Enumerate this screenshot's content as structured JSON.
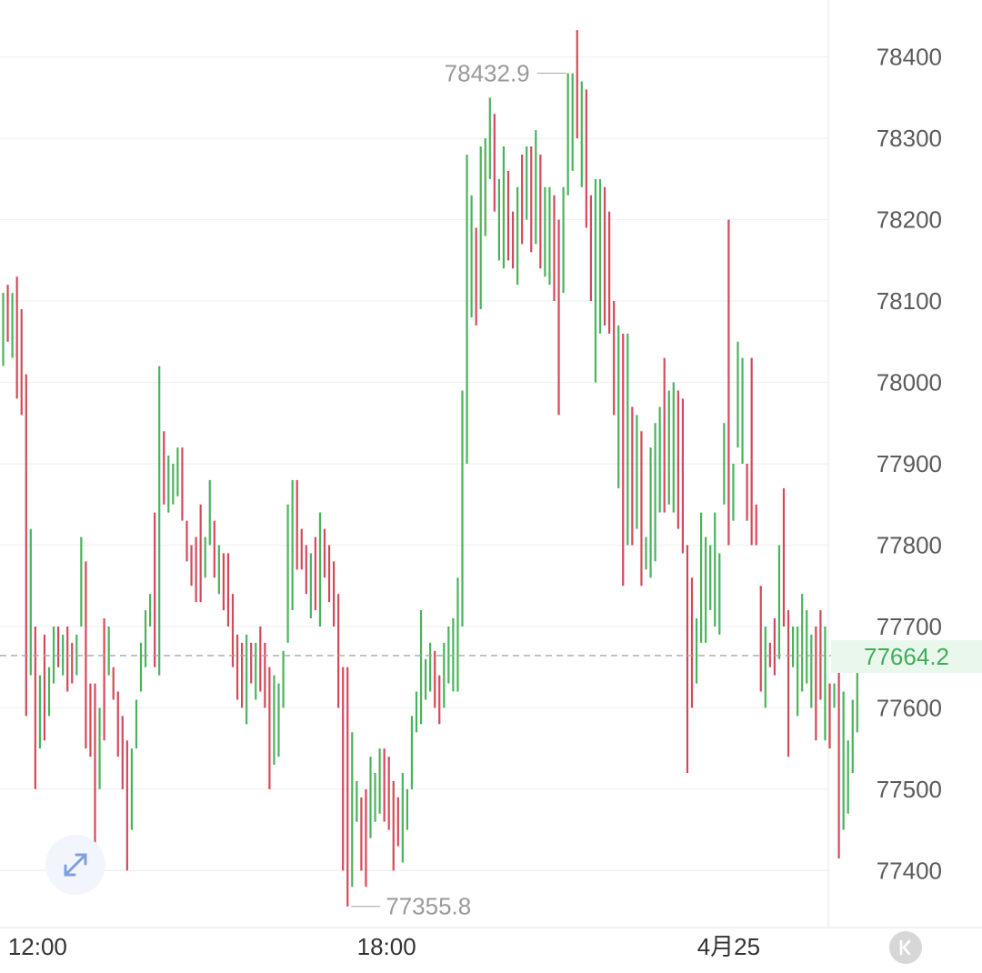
{
  "chart_data": {
    "type": "ohlc",
    "title": "",
    "xlabel": "",
    "ylabel": "",
    "ylim": [
      77330,
      78470
    ],
    "yticks": [
      78400,
      78300,
      78200,
      78100,
      78000,
      77900,
      77800,
      77700,
      77600,
      77500,
      77400
    ],
    "xticks": [
      {
        "label": "12:00",
        "index": 7.5
      },
      {
        "label": "18:00",
        "index": 83.5
      },
      {
        "label": "4月25",
        "index": 158
      }
    ],
    "grid": true,
    "current_price": 77664.2,
    "current_price_label": "77664.2",
    "max_label": "78432.9",
    "min_label": "77355.8",
    "max_index": 123,
    "min_index": 75,
    "colors": {
      "up": "#49b35c",
      "down": "#d4495a",
      "current": "#3fae5a",
      "current_bg": "#eaf7ed"
    },
    "candles": [
      [
        78110,
        78020,
        "up"
      ],
      [
        78120,
        78050,
        "down"
      ],
      [
        78110,
        78030,
        "up"
      ],
      [
        78130,
        77980,
        "down"
      ],
      [
        78090,
        77960,
        "down"
      ],
      [
        78010,
        77590,
        "down"
      ],
      [
        77820,
        77640,
        "up"
      ],
      [
        77700,
        77500,
        "down"
      ],
      [
        77640,
        77550,
        "up"
      ],
      [
        77690,
        77560,
        "down"
      ],
      [
        77650,
        77590,
        "up"
      ],
      [
        77700,
        77630,
        "up"
      ],
      [
        77700,
        77650,
        "down"
      ],
      [
        77690,
        77640,
        "up"
      ],
      [
        77700,
        77620,
        "down"
      ],
      [
        77680,
        77630,
        "down"
      ],
      [
        77690,
        77640,
        "up"
      ],
      [
        77810,
        77700,
        "up"
      ],
      [
        77780,
        77550,
        "down"
      ],
      [
        77630,
        77540,
        "down"
      ],
      [
        77630,
        77410,
        "down"
      ],
      [
        77600,
        77500,
        "up"
      ],
      [
        77710,
        77560,
        "down"
      ],
      [
        77700,
        77640,
        "up"
      ],
      [
        77650,
        77610,
        "down"
      ],
      [
        77620,
        77540,
        "down"
      ],
      [
        77590,
        77500,
        "down"
      ],
      [
        77560,
        77400,
        "down"
      ],
      [
        77550,
        77450,
        "up"
      ],
      [
        77610,
        77550,
        "up"
      ],
      [
        77680,
        77620,
        "up"
      ],
      [
        77720,
        77650,
        "up"
      ],
      [
        77740,
        77700,
        "up"
      ],
      [
        77840,
        77650,
        "down"
      ],
      [
        78020,
        77640,
        "up"
      ],
      [
        77940,
        77850,
        "down"
      ],
      [
        77910,
        77840,
        "up"
      ],
      [
        77900,
        77850,
        "up"
      ],
      [
        77920,
        77860,
        "up"
      ],
      [
        77920,
        77830,
        "down"
      ],
      [
        77830,
        77780,
        "down"
      ],
      [
        77800,
        77750,
        "down"
      ],
      [
        77810,
        77730,
        "down"
      ],
      [
        77850,
        77730,
        "down"
      ],
      [
        77810,
        77760,
        "up"
      ],
      [
        77880,
        77800,
        "up"
      ],
      [
        77830,
        77760,
        "down"
      ],
      [
        77800,
        77740,
        "up"
      ],
      [
        77790,
        77720,
        "down"
      ],
      [
        77790,
        77700,
        "down"
      ],
      [
        77740,
        77650,
        "down"
      ],
      [
        77690,
        77610,
        "down"
      ],
      [
        77680,
        77600,
        "down"
      ],
      [
        77690,
        77580,
        "up"
      ],
      [
        77680,
        77630,
        "down"
      ],
      [
        77680,
        77610,
        "up"
      ],
      [
        77700,
        77620,
        "down"
      ],
      [
        77680,
        77600,
        "down"
      ],
      [
        77650,
        77500,
        "down"
      ],
      [
        77640,
        77530,
        "up"
      ],
      [
        77630,
        77540,
        "up"
      ],
      [
        77670,
        77600,
        "up"
      ],
      [
        77850,
        77680,
        "up"
      ],
      [
        77880,
        77720,
        "up"
      ],
      [
        77880,
        77770,
        "down"
      ],
      [
        77820,
        77770,
        "down"
      ],
      [
        77800,
        77740,
        "down"
      ],
      [
        77790,
        77710,
        "up"
      ],
      [
        77810,
        77720,
        "down"
      ],
      [
        77840,
        77700,
        "up"
      ],
      [
        77820,
        77760,
        "down"
      ],
      [
        77800,
        77730,
        "down"
      ],
      [
        77780,
        77700,
        "down"
      ],
      [
        77740,
        77600,
        "down"
      ],
      [
        77650,
        77400,
        "down"
      ],
      [
        77650,
        77356,
        "down"
      ],
      [
        77570,
        77380,
        "up"
      ],
      [
        77510,
        77460,
        "up"
      ],
      [
        77490,
        77400,
        "down"
      ],
      [
        77500,
        77380,
        "down"
      ],
      [
        77540,
        77440,
        "up"
      ],
      [
        77520,
        77460,
        "up"
      ],
      [
        77550,
        77470,
        "up"
      ],
      [
        77550,
        77460,
        "down"
      ],
      [
        77540,
        77450,
        "down"
      ],
      [
        77510,
        77400,
        "down"
      ],
      [
        77490,
        77430,
        "down"
      ],
      [
        77520,
        77410,
        "up"
      ],
      [
        77500,
        77450,
        "up"
      ],
      [
        77590,
        77500,
        "up"
      ],
      [
        77620,
        77570,
        "up"
      ],
      [
        77720,
        77580,
        "up"
      ],
      [
        77660,
        77610,
        "up"
      ],
      [
        77680,
        77620,
        "up"
      ],
      [
        77670,
        77600,
        "down"
      ],
      [
        77640,
        77580,
        "down"
      ],
      [
        77680,
        77600,
        "up"
      ],
      [
        77700,
        77630,
        "up"
      ],
      [
        77710,
        77620,
        "up"
      ],
      [
        77760,
        77620,
        "up"
      ],
      [
        77990,
        77700,
        "up"
      ],
      [
        78280,
        77900,
        "up"
      ],
      [
        78230,
        78080,
        "up"
      ],
      [
        78190,
        78070,
        "down"
      ],
      [
        78290,
        78090,
        "up"
      ],
      [
        78300,
        78180,
        "up"
      ],
      [
        78350,
        78250,
        "up"
      ],
      [
        78330,
        78210,
        "down"
      ],
      [
        78250,
        78150,
        "up"
      ],
      [
        78290,
        78140,
        "up"
      ],
      [
        78260,
        78150,
        "down"
      ],
      [
        78210,
        78140,
        "down"
      ],
      [
        78240,
        78120,
        "up"
      ],
      [
        78280,
        78170,
        "down"
      ],
      [
        78290,
        78200,
        "up"
      ],
      [
        78290,
        78160,
        "down"
      ],
      [
        78310,
        78170,
        "up"
      ],
      [
        78280,
        78140,
        "down"
      ],
      [
        78240,
        78130,
        "up"
      ],
      [
        78240,
        78120,
        "up"
      ],
      [
        78230,
        78100,
        "down"
      ],
      [
        78200,
        77960,
        "down"
      ],
      [
        78240,
        78110,
        "up"
      ],
      [
        78380,
        78230,
        "up"
      ],
      [
        78380,
        78260,
        "up"
      ],
      [
        78433,
        78300,
        "down"
      ],
      [
        78370,
        78240,
        "up"
      ],
      [
        78360,
        78190,
        "down"
      ],
      [
        78230,
        78100,
        "down"
      ],
      [
        78250,
        78000,
        "up"
      ],
      [
        78250,
        78060,
        "up"
      ],
      [
        78240,
        78070,
        "down"
      ],
      [
        78210,
        78060,
        "down"
      ],
      [
        78100,
        77960,
        "down"
      ],
      [
        78070,
        77870,
        "up"
      ],
      [
        78060,
        77750,
        "down"
      ],
      [
        78060,
        77800,
        "up"
      ],
      [
        77970,
        77800,
        "down"
      ],
      [
        77960,
        77820,
        "up"
      ],
      [
        77940,
        77750,
        "down"
      ],
      [
        77810,
        77770,
        "up"
      ],
      [
        77920,
        77760,
        "up"
      ],
      [
        77950,
        77780,
        "up"
      ],
      [
        77970,
        77840,
        "up"
      ],
      [
        78030,
        77840,
        "down"
      ],
      [
        77990,
        77850,
        "up"
      ],
      [
        78000,
        77840,
        "up"
      ],
      [
        77990,
        77820,
        "down"
      ],
      [
        77980,
        77790,
        "down"
      ],
      [
        77800,
        77520,
        "down"
      ],
      [
        77760,
        77600,
        "down"
      ],
      [
        77710,
        77630,
        "up"
      ],
      [
        77840,
        77680,
        "up"
      ],
      [
        77810,
        77680,
        "up"
      ],
      [
        77800,
        77720,
        "up"
      ],
      [
        77840,
        77700,
        "up"
      ],
      [
        77790,
        77690,
        "up"
      ],
      [
        77950,
        77850,
        "up"
      ],
      [
        78200,
        77800,
        "down"
      ],
      [
        77900,
        77830,
        "up"
      ],
      [
        78050,
        77920,
        "up"
      ],
      [
        78030,
        77900,
        "up"
      ],
      [
        77900,
        77830,
        "down"
      ],
      [
        78030,
        77800,
        "down"
      ],
      [
        77850,
        77800,
        "down"
      ],
      [
        77750,
        77620,
        "down"
      ],
      [
        77700,
        77600,
        "up"
      ],
      [
        77680,
        77650,
        "down"
      ],
      [
        77710,
        77640,
        "down"
      ],
      [
        77800,
        77660,
        "up"
      ],
      [
        77870,
        77700,
        "down"
      ],
      [
        77720,
        77540,
        "down"
      ],
      [
        77700,
        77650,
        "up"
      ],
      [
        77700,
        77590,
        "up"
      ],
      [
        77740,
        77620,
        "up"
      ],
      [
        77720,
        77630,
        "up"
      ],
      [
        77690,
        77600,
        "up"
      ],
      [
        77700,
        77560,
        "down"
      ],
      [
        77720,
        77610,
        "down"
      ],
      [
        77700,
        77560,
        "up"
      ],
      [
        77630,
        77550,
        "down"
      ],
      [
        77630,
        77600,
        "up"
      ],
      [
        77680,
        77415,
        "down"
      ],
      [
        77620,
        77450,
        "up"
      ],
      [
        77560,
        77470,
        "up"
      ],
      [
        77610,
        77520,
        "up"
      ],
      [
        77680,
        77570,
        "up"
      ]
    ]
  }
}
